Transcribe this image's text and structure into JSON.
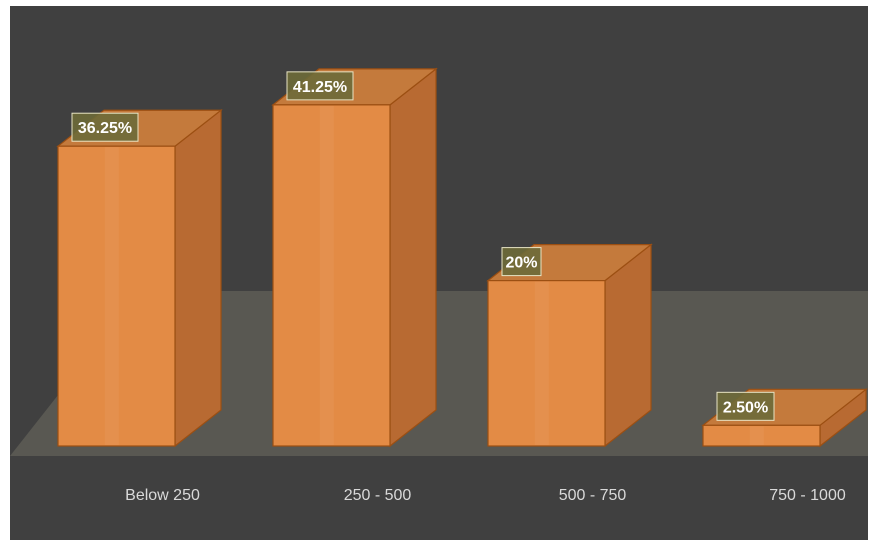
{
  "chart_data": {
    "type": "bar",
    "categories": [
      "Below 250",
      "250 - 500",
      "500 - 750",
      "750 - 1000"
    ],
    "values": [
      36.25,
      41.25,
      20,
      2.5
    ],
    "data_labels": [
      "36.25%",
      "41.25%",
      "20%",
      "2.50%"
    ],
    "title": "",
    "xlabel": "",
    "ylabel": "",
    "ylim": [
      0,
      45
    ],
    "grid": false,
    "legend": "none",
    "style": "3d-column"
  },
  "colors": {
    "background": "#404040",
    "floor": "#595852",
    "bar_front": "#e38b45",
    "bar_side": "#b86a32",
    "bar_top": "#c47a3c",
    "bar_edge": "#9c4f12",
    "label_box": "#6d6a38",
    "label_text": "#ffffff",
    "axis_text": "#d9d9d9"
  }
}
